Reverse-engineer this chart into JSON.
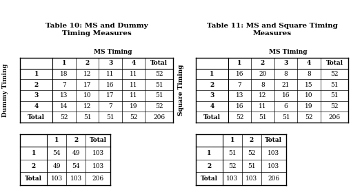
{
  "table10_title": "Table 10: MS and Dummy\nTiming Measures",
  "table11_title": "Table 11: MS and Square Timing\nMeasures",
  "ms_timing_label": "MS Timing",
  "dummy_timing_label": "Dummy Timing",
  "square_timing_label": "Square Timing",
  "table10_main_headers": [
    "",
    "1",
    "2",
    "3",
    "4",
    "Total"
  ],
  "table10_main_rows": [
    [
      "1",
      "18",
      "12",
      "11",
      "11",
      "52"
    ],
    [
      "2",
      "7",
      "17",
      "16",
      "11",
      "51"
    ],
    [
      "3",
      "13",
      "10",
      "17",
      "11",
      "51"
    ],
    [
      "4",
      "14",
      "12",
      "7",
      "19",
      "52"
    ],
    [
      "Total",
      "52",
      "51",
      "51",
      "52",
      "206"
    ]
  ],
  "table10_sub_headers": [
    "",
    "1",
    "2",
    "Total"
  ],
  "table10_sub_rows": [
    [
      "1",
      "54",
      "49",
      "103"
    ],
    [
      "2",
      "49",
      "54",
      "103"
    ],
    [
      "Total",
      "103",
      "103",
      "206"
    ]
  ],
  "table11_main_headers": [
    "",
    "1",
    "2",
    "3",
    "4",
    "Total"
  ],
  "table11_main_rows": [
    [
      "1",
      "16",
      "20",
      "8",
      "8",
      "52"
    ],
    [
      "2",
      "7",
      "8",
      "21",
      "15",
      "51"
    ],
    [
      "3",
      "13",
      "12",
      "16",
      "10",
      "51"
    ],
    [
      "4",
      "16",
      "11",
      "6",
      "19",
      "52"
    ],
    [
      "Total",
      "52",
      "51",
      "51",
      "52",
      "206"
    ]
  ],
  "table11_sub_headers": [
    "",
    "1",
    "2",
    "Total"
  ],
  "table11_sub_rows": [
    [
      "1",
      "51",
      "52",
      "103"
    ],
    [
      "2",
      "52",
      "51",
      "103"
    ],
    [
      "Total",
      "103",
      "103",
      "206"
    ]
  ],
  "bg_color": "#ffffff",
  "font_size": 6.5,
  "title_font_size": 7.5
}
